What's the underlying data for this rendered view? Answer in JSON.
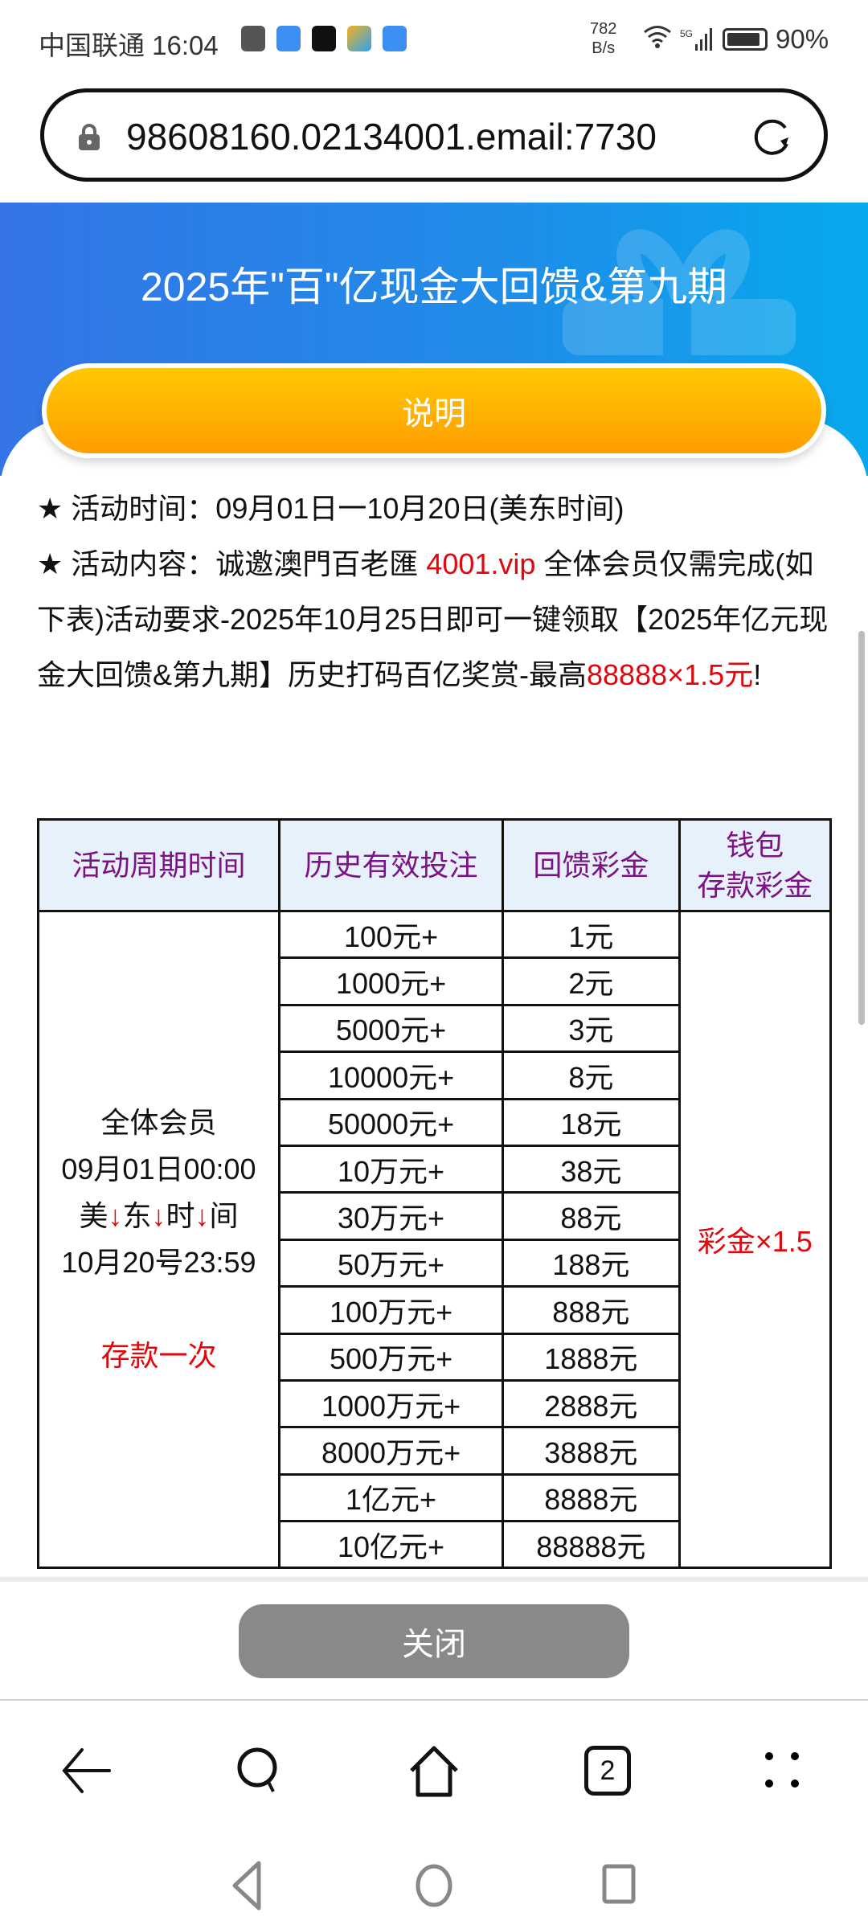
{
  "status_bar": {
    "carrier": "中国联通",
    "time": "16:04",
    "net_speed_value": "782",
    "net_speed_unit": "B/s",
    "network": "5G",
    "battery": "90%",
    "battery_level": 0.9,
    "notification_icons": [
      "upload-icon",
      "weather-icon",
      "moji-icon",
      "pinwheel-icon",
      "cloud-icon"
    ]
  },
  "browser": {
    "url": "98608160.02134001.email:7730",
    "tab_count": "2"
  },
  "hero": {
    "title": "2025年\"百\"亿现金大回馈&第九期",
    "explain_button": "说明",
    "colors": {
      "blue_start": "#3574e6",
      "blue_end": "#07a9ee",
      "orange": "#ffb000"
    }
  },
  "content": {
    "line1_star": "★",
    "line1": "活动时间：09月01日一10月20日(美东时间)",
    "line2_star": "★",
    "line2_a": "活动内容：诚邀澳門百老匯 ",
    "line2_link": "4001.vip",
    "line2_b": " 全体会员仅需完成(如下表)活动要求-2025年10月25日即可一键领取【2025年亿元现金大回馈&第九期】历史打码百亿奖赏-最高",
    "line2_red": "88888×1.5元",
    "line2_end": "!"
  },
  "table": {
    "headers": [
      "活动周期时间",
      "历史有效投注",
      "回馈彩金",
      "钱包",
      "存款彩金"
    ],
    "period": {
      "l1": "全体会员",
      "l2": "09月01日00:00",
      "l3a": "美",
      "l3b": "东",
      "l3c": "时",
      "l3d": "间",
      "arrow": "↓",
      "l4": "10月20号23:59",
      "l5": "存款一次"
    },
    "wallet_bonus": "彩金×1.5",
    "rows": [
      {
        "bet": "100元+",
        "bonus": "1元"
      },
      {
        "bet": "1000元+",
        "bonus": "2元"
      },
      {
        "bet": "5000元+",
        "bonus": "3元"
      },
      {
        "bet": "10000元+",
        "bonus": "8元"
      },
      {
        "bet": "50000元+",
        "bonus": "18元"
      },
      {
        "bet": "10万元+",
        "bonus": "38元"
      },
      {
        "bet": "30万元+",
        "bonus": "88元"
      },
      {
        "bet": "50万元+",
        "bonus": "188元"
      },
      {
        "bet": "100万元+",
        "bonus": "888元"
      },
      {
        "bet": "500万元+",
        "bonus": "1888元"
      },
      {
        "bet": "1000万元+",
        "bonus": "2888元"
      },
      {
        "bet": "8000万元+",
        "bonus": "3888元"
      },
      {
        "bet": "1亿元+",
        "bonus": "8888元"
      },
      {
        "bet": "10亿元+",
        "bonus": "88888元"
      }
    ]
  },
  "footer": {
    "close_button": "关闭"
  },
  "nav": {
    "items": [
      "back-icon",
      "search-icon",
      "home-icon",
      "tabs-icon",
      "menu-icon"
    ]
  }
}
